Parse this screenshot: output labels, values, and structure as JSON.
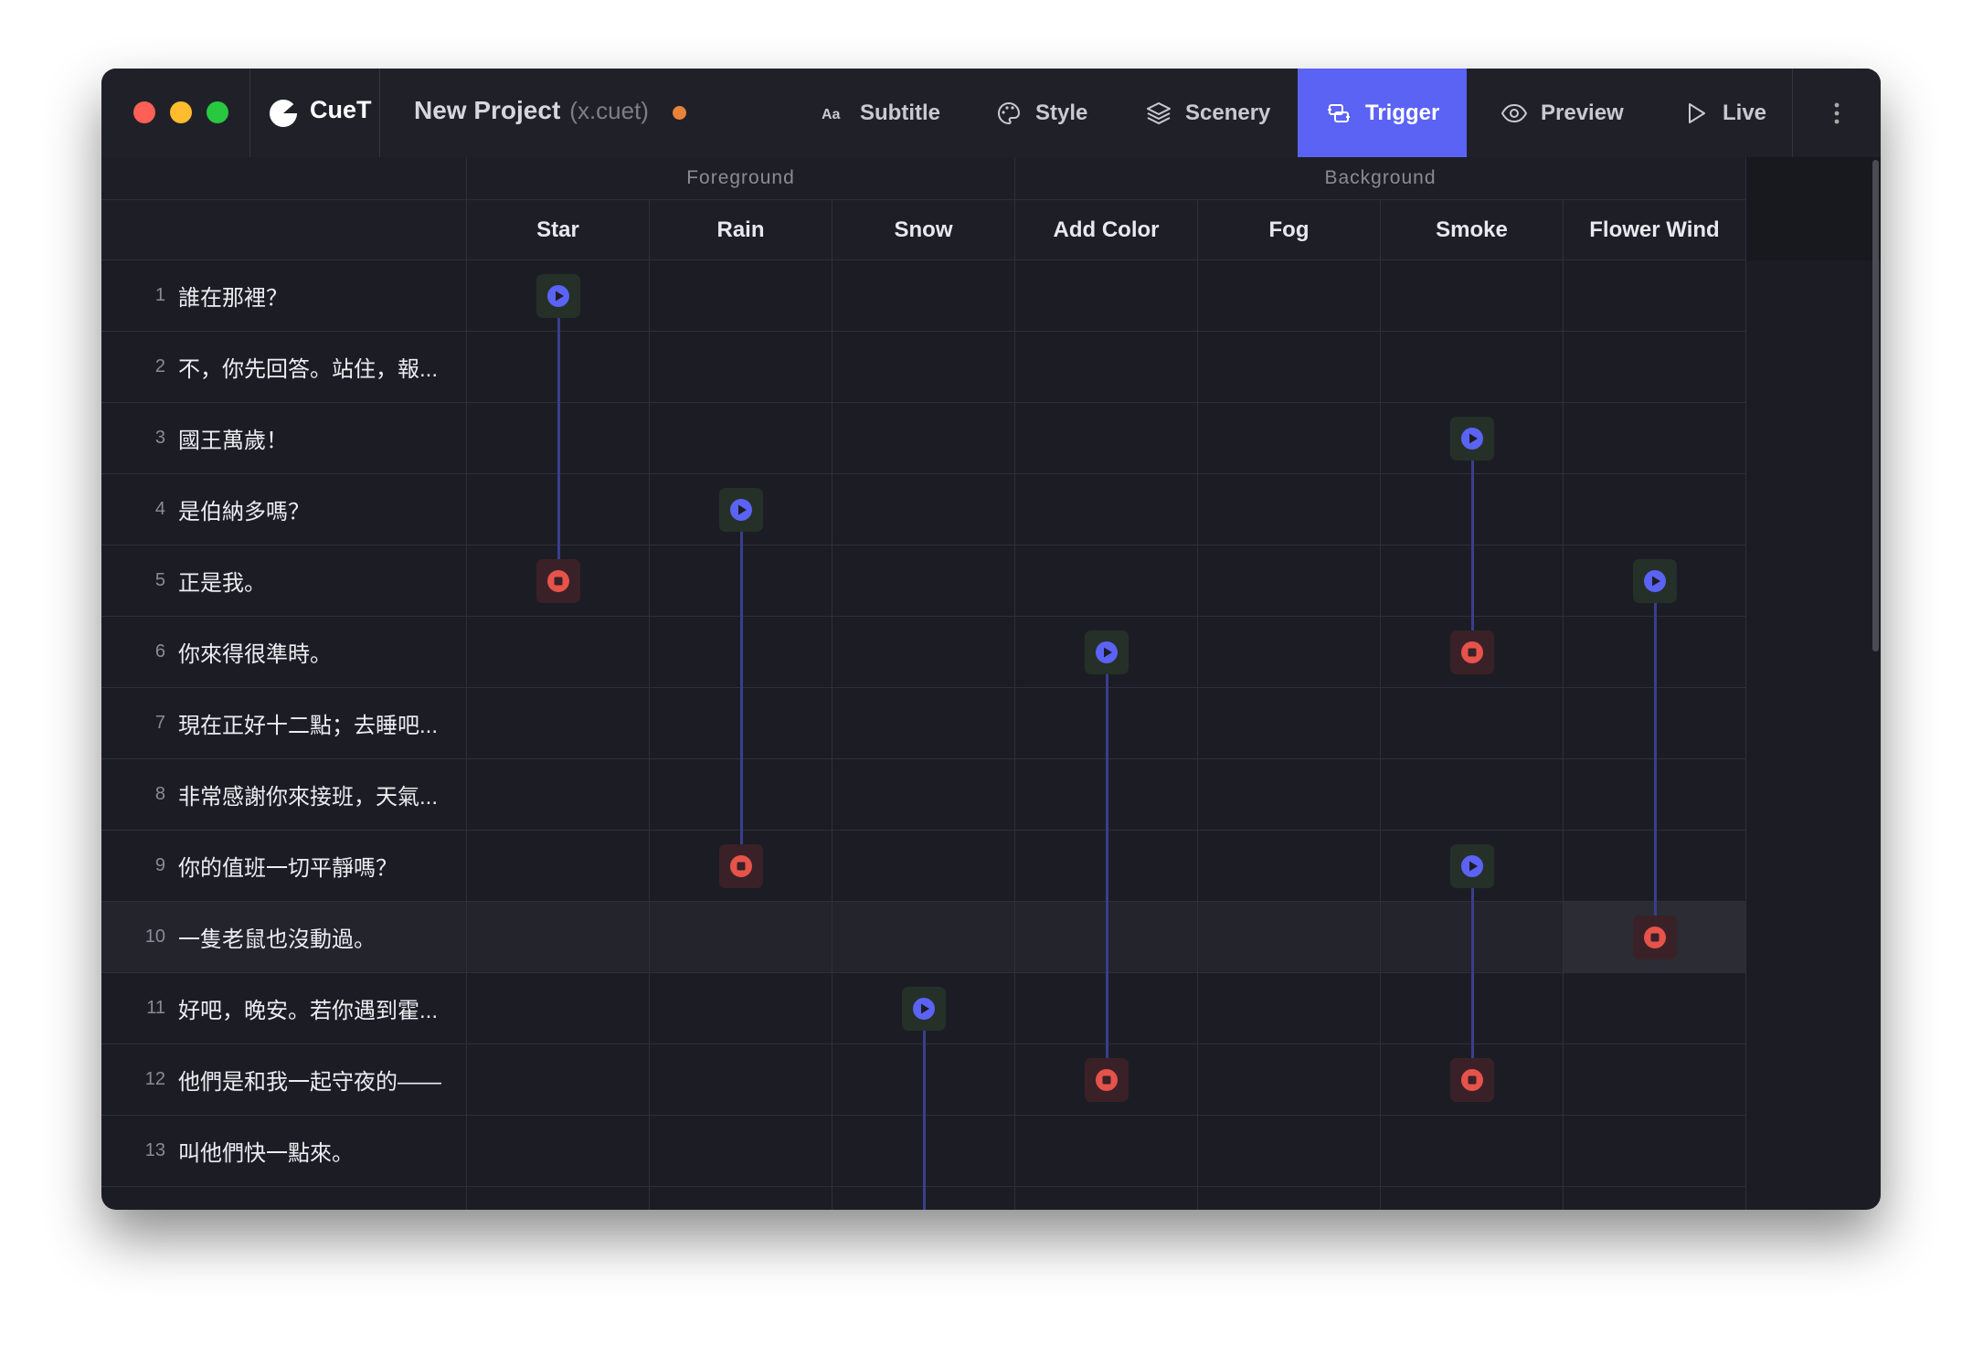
{
  "header": {
    "app_name": "CueT",
    "project_title": "New Project",
    "project_file": "(x.cuet)",
    "tabs": [
      "Subtitle",
      "Style",
      "Scenery",
      "Trigger",
      "Preview",
      "Live"
    ],
    "active_tab": 3
  },
  "groups": [
    {
      "label": "Foreground",
      "first_column": 0,
      "last_column": 2
    },
    {
      "label": "Background",
      "first_column": 3,
      "last_column": 6
    }
  ],
  "columns": [
    "Star",
    "Rain",
    "Snow",
    "Add Color",
    "Fog",
    "Smoke",
    "Flower Wind"
  ],
  "rows": [
    {
      "number": "1",
      "text": "誰在那裡？"
    },
    {
      "number": "2",
      "text": "不，你先回答。站住，報..."
    },
    {
      "number": "3",
      "text": "國王萬歲！"
    },
    {
      "number": "4",
      "text": "是伯納多嗎？"
    },
    {
      "number": "5",
      "text": "正是我。"
    },
    {
      "number": "6",
      "text": "你來得很準時。"
    },
    {
      "number": "7",
      "text": "現在正好十二點；去睡吧..."
    },
    {
      "number": "8",
      "text": "非常感謝你來接班，天氣..."
    },
    {
      "number": "9",
      "text": "你的值班一切平靜嗎？"
    },
    {
      "number": "10",
      "text": "一隻老鼠也沒動過。"
    },
    {
      "number": "11",
      "text": "好吧，晚安。若你遇到霍..."
    },
    {
      "number": "12",
      "text": "他們是和我一起守夜的——"
    },
    {
      "number": "13",
      "text": "叫他們快一點來。"
    }
  ],
  "highlighted_row": 9,
  "highlighted_cell": {
    "row": 9,
    "column": 6
  },
  "triggers": [
    {
      "column": 0,
      "start_row": 0,
      "end_row": 4
    },
    {
      "column": 1,
      "start_row": 3,
      "end_row": 8
    },
    {
      "column": 2,
      "start_row": 10,
      "end_row": null
    },
    {
      "column": 3,
      "start_row": 5,
      "end_row": 11
    },
    {
      "column": 5,
      "start_row": 2,
      "end_row": 5
    },
    {
      "column": 5,
      "start_row": 8,
      "end_row": 11
    },
    {
      "column": 6,
      "start_row": 4,
      "end_row": 9
    }
  ]
}
